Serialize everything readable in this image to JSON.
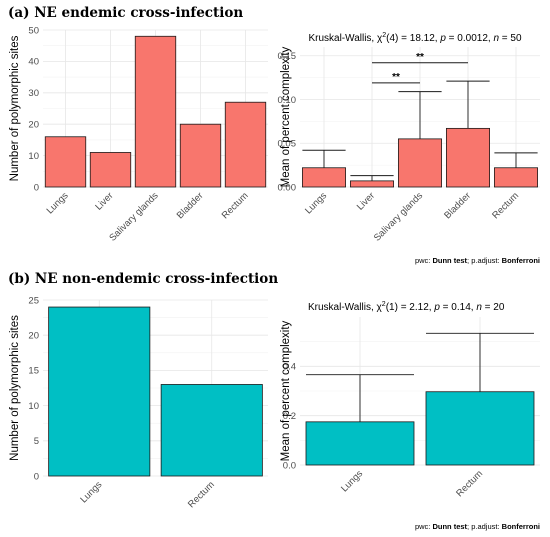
{
  "panel_a_title": "(a) NE endemic cross-infection",
  "panel_b_title": "(b) NE non-endemic cross-infection",
  "colors": {
    "a": "#f8766d",
    "b": "#00bfc4",
    "edge": "#1a1a1a"
  },
  "chart_data": [
    {
      "type": "bar",
      "panel": "a-left",
      "categories": [
        "Lungs",
        "Liver",
        "Salivary glands",
        "Bladder",
        "Rectum"
      ],
      "values": [
        16,
        11,
        48,
        20,
        27
      ],
      "ylabel": "Number of polymorphic sites",
      "ylim": [
        0,
        50
      ],
      "yticks": [
        0,
        10,
        20,
        30,
        40,
        50
      ],
      "color": "#f8766d",
      "grid": true
    },
    {
      "type": "bar",
      "panel": "a-right",
      "categories": [
        "Lungs",
        "Liver",
        "Salivary glands",
        "Bladder",
        "Rectum"
      ],
      "values": [
        0.022,
        0.007,
        0.055,
        0.067,
        0.022
      ],
      "errors_upper": [
        0.042,
        0.013,
        0.109,
        0.121,
        0.039
      ],
      "ylabel": "Mean of percent complexity",
      "ylim": [
        0,
        0.16
      ],
      "yticks": [
        0.0,
        0.05,
        0.1,
        0.15
      ],
      "ytick_labels": [
        "0.00",
        "0.05",
        "0.10",
        "0.15"
      ],
      "stat_parts": [
        "Kruskal-Wallis, ",
        "χ",
        "2",
        "(4) = 18.12, ",
        "p",
        " = 0.0012, ",
        "n",
        " = 50"
      ],
      "brackets": [
        {
          "from": 1,
          "to": 2,
          "y": 0.119,
          "label": "**"
        },
        {
          "from": 1,
          "to": 3,
          "y": 0.142,
          "label": "**"
        }
      ],
      "footnote_parts": [
        "pwc: ",
        "Dunn test",
        "; p.adjust: ",
        "Bonferroni"
      ],
      "color": "#f8766d",
      "grid": true
    },
    {
      "type": "bar",
      "panel": "b-left",
      "categories": [
        "Lungs",
        "Rectum"
      ],
      "values": [
        24,
        13
      ],
      "ylabel": "Number of polymorphic sites",
      "ylim": [
        0,
        25
      ],
      "yticks": [
        0,
        5,
        10,
        15,
        20,
        25
      ],
      "color": "#00bfc4",
      "grid": true
    },
    {
      "type": "bar",
      "panel": "b-right",
      "categories": [
        "Lungs",
        "Rectum"
      ],
      "values": [
        0.175,
        0.297
      ],
      "errors_upper": [
        0.366,
        0.534
      ],
      "ylabel": "Mean of percent complexity",
      "ylim": [
        0,
        0.6
      ],
      "yticks": [
        0.0,
        0.2,
        0.4
      ],
      "ytick_labels": [
        "0.0",
        "0.2",
        "0.4"
      ],
      "stat_parts": [
        "Kruskal-Wallis, ",
        "χ",
        "2",
        "(1) = 2.12, ",
        "p",
        " = 0.14, ",
        "n",
        " = 20"
      ],
      "footnote_parts": [
        "pwc: ",
        "Dunn test",
        "; p.adjust: ",
        "Bonferroni"
      ],
      "color": "#00bfc4",
      "grid": true
    }
  ]
}
